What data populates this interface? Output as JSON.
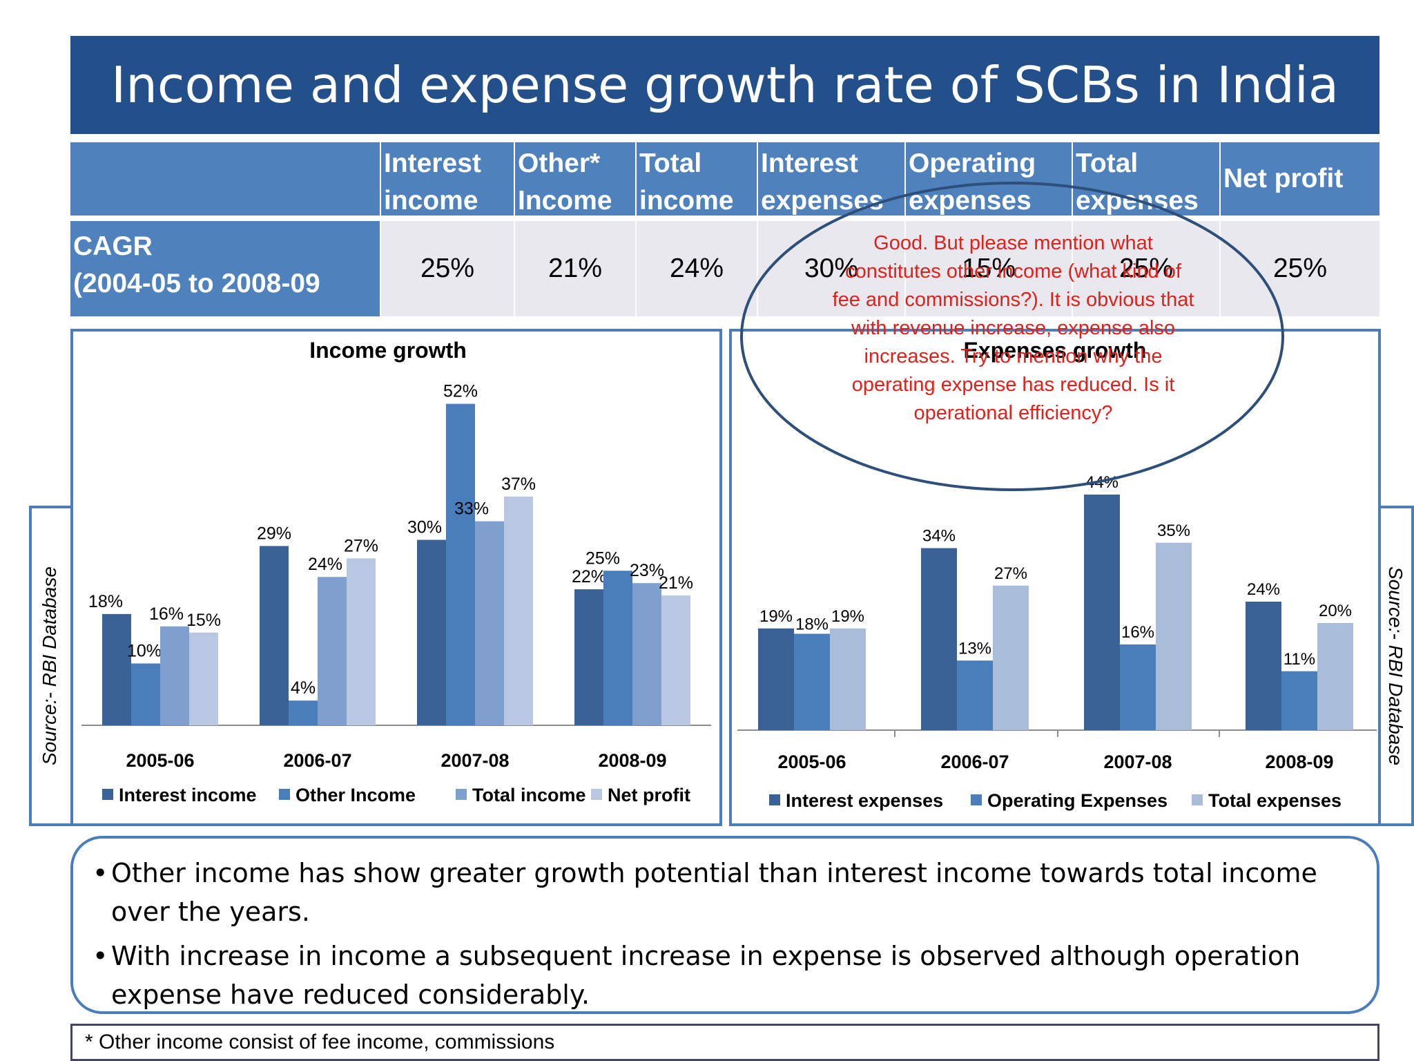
{
  "title": "Income and expense growth rate of SCBs in India",
  "table": {
    "headers": [
      {
        "line1": "Interest",
        "line2": "income"
      },
      {
        "line1": "Other*",
        "line2": "Income"
      },
      {
        "line1": "Total",
        "line2": "income"
      },
      {
        "line1": "Interest",
        "line2": "expenses"
      },
      {
        "line1": "Operating",
        "line2": "expenses"
      },
      {
        "line1": "Total",
        "line2": "expenses"
      },
      {
        "line1": "Net profit",
        "line2": ""
      }
    ],
    "row_label_line1": "CAGR",
    "row_label_line2": "(2004-05 to 2008-09",
    "values": [
      "25%",
      "21%",
      "24%",
      "30%",
      "15%",
      "25%",
      "25%"
    ]
  },
  "annotation": "Good. But please mention what constitutes other income (what kind of fee and commissions?). It is obvious that with revenue increase, expense also increases. Try to mention why the operating expense has reduced. Is it operational efficiency?",
  "source_left": "Source:- RBI Database",
  "source_right": "Source:- RBI Database",
  "chart_data": [
    {
      "type": "bar",
      "title": "Income growth",
      "categories": [
        "2005-06",
        "2006-07",
        "2007-08",
        "2008-09"
      ],
      "series": [
        {
          "name": "Interest income",
          "color": "#3b6296",
          "values": [
            18,
            29,
            30,
            22
          ],
          "labels": [
            "18%",
            "29%",
            "30%",
            "22%"
          ]
        },
        {
          "name": "Other Income",
          "color": "#4a7ebb",
          "values": [
            10,
            4,
            52,
            25
          ],
          "labels": [
            "10%",
            "4%",
            "52%",
            "25%"
          ]
        },
        {
          "name": "Total income",
          "color": "#7f9fcf",
          "values": [
            16,
            24,
            33,
            23
          ],
          "labels": [
            "16%",
            "24%",
            "33%",
            "23%"
          ]
        },
        {
          "name": "Net profit",
          "color": "#b9c7e2",
          "values": [
            15,
            27,
            37,
            21
          ],
          "labels": [
            "15%",
            "27%",
            "37%",
            "21%"
          ]
        }
      ],
      "ylim": [
        0,
        60
      ],
      "legend": "bottom"
    },
    {
      "type": "bar",
      "title": "Expenses growth",
      "categories": [
        "2005-06",
        "2006-07",
        "2007-08",
        "2008-09"
      ],
      "series": [
        {
          "name": "Interest expenses",
          "color": "#3b6296",
          "values": [
            19,
            34,
            44,
            24
          ],
          "labels": [
            "19%",
            "34%",
            "44%",
            "24%"
          ]
        },
        {
          "name": "Operating Expenses",
          "color": "#4a7ebb",
          "values": [
            18,
            13,
            16,
            11
          ],
          "labels": [
            "18%",
            "13%",
            "16%",
            "11%"
          ]
        },
        {
          "name": "Total expenses",
          "color": "#a9bcda",
          "values": [
            19,
            27,
            35,
            20
          ],
          "labels": [
            "19%",
            "27%",
            "35%",
            "20%"
          ]
        }
      ],
      "ylim": [
        0,
        50
      ],
      "legend": "bottom"
    }
  ],
  "bullets": [
    "Other income has show greater growth potential than interest income towards total income over the years.",
    "With increase in income a subsequent increase in expense is observed although operation expense have reduced considerably."
  ],
  "footnote": "* Other income consist of fee income, commissions"
}
